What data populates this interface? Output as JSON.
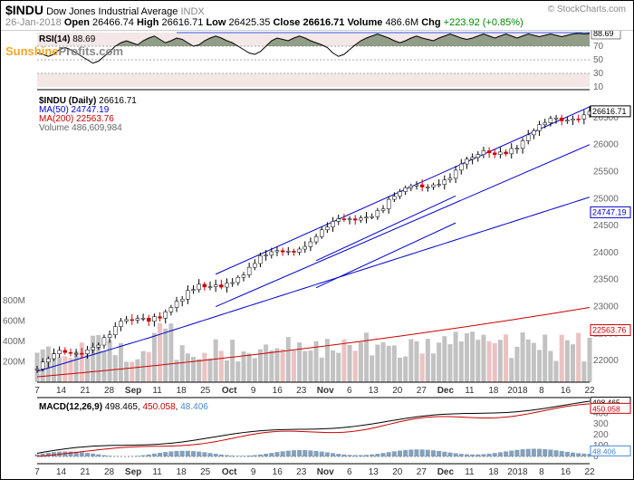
{
  "ticker": "$INDU",
  "name": "Dow Jones Industrial Average",
  "index_type": "INDX",
  "attribution": "© StockCharts.com",
  "watermark": {
    "a": "Sunshine",
    "b": "Profits.com"
  },
  "date": "26-Jan-2018",
  "ohlc": {
    "open_label": "Open",
    "open": "26466.74",
    "high_label": "High",
    "high": "26616.71",
    "low_label": "Low",
    "low": "26425.35",
    "close_label": "Close",
    "close": "26616.71",
    "vol_label": "Volume",
    "vol": "486.6M",
    "chg_label": "Chg",
    "chg": "+223.92",
    "chg_pct": "(+0.85%)"
  },
  "rsi_panel": {
    "label": "RSI(14)",
    "value": "88.69",
    "bands": [
      90,
      70,
      50,
      30,
      10
    ],
    "right_val": "88.69",
    "colors": {
      "line": "#000",
      "fill": "#687d5e",
      "band": "#aaa",
      "blue": "#3355ee"
    }
  },
  "price_panel": {
    "title": "$INDU (Daily)",
    "title_val": "26616.71",
    "ma50_label": "MA(50)",
    "ma50_val": "24747.19",
    "ma200_label": "MA(200)",
    "ma200_val": "22563.76",
    "vol_label": "Volume",
    "vol_val": "486,609,984",
    "right_labels": [
      "26616.71",
      "24747.19",
      "22563.76"
    ],
    "y_ticks": [
      26500,
      26000,
      25500,
      25000,
      24500,
      24000,
      23500,
      23000,
      22500,
      22000
    ],
    "vol_ticks": [
      "200M",
      "400M",
      "600M",
      "800M"
    ],
    "colors": {
      "candle_up": "#000",
      "candle_dn": "#cc0000",
      "ma50": "#0000cc",
      "ma200": "#cc0000",
      "channel": "#0000cc",
      "vol_up": "#999",
      "vol_dn": "#d99"
    }
  },
  "x_axis": {
    "labels": [
      "7",
      "14",
      "21",
      "28",
      "Sep",
      "11",
      "18",
      "25",
      "Oct",
      "9",
      "16",
      "23",
      "Nov",
      "6",
      "13",
      "20",
      "27",
      "Dec",
      "11",
      "18",
      "2018",
      "8",
      "16",
      "22"
    ]
  },
  "macd_panel": {
    "label": "MACD(12,26,9)",
    "v1": "498.465",
    "v2": "450.058",
    "v3": "48.406",
    "right_labels": [
      "498.465",
      "450.058",
      "48.406"
    ],
    "y_ticks": [
      400,
      300,
      200,
      100,
      0
    ],
    "colors": {
      "line": "#000",
      "signal": "#cc0000",
      "hist": "#6688aa",
      "zero": "#888"
    }
  },
  "chart_bg": "#ffffff",
  "grid_color": "#ddd"
}
